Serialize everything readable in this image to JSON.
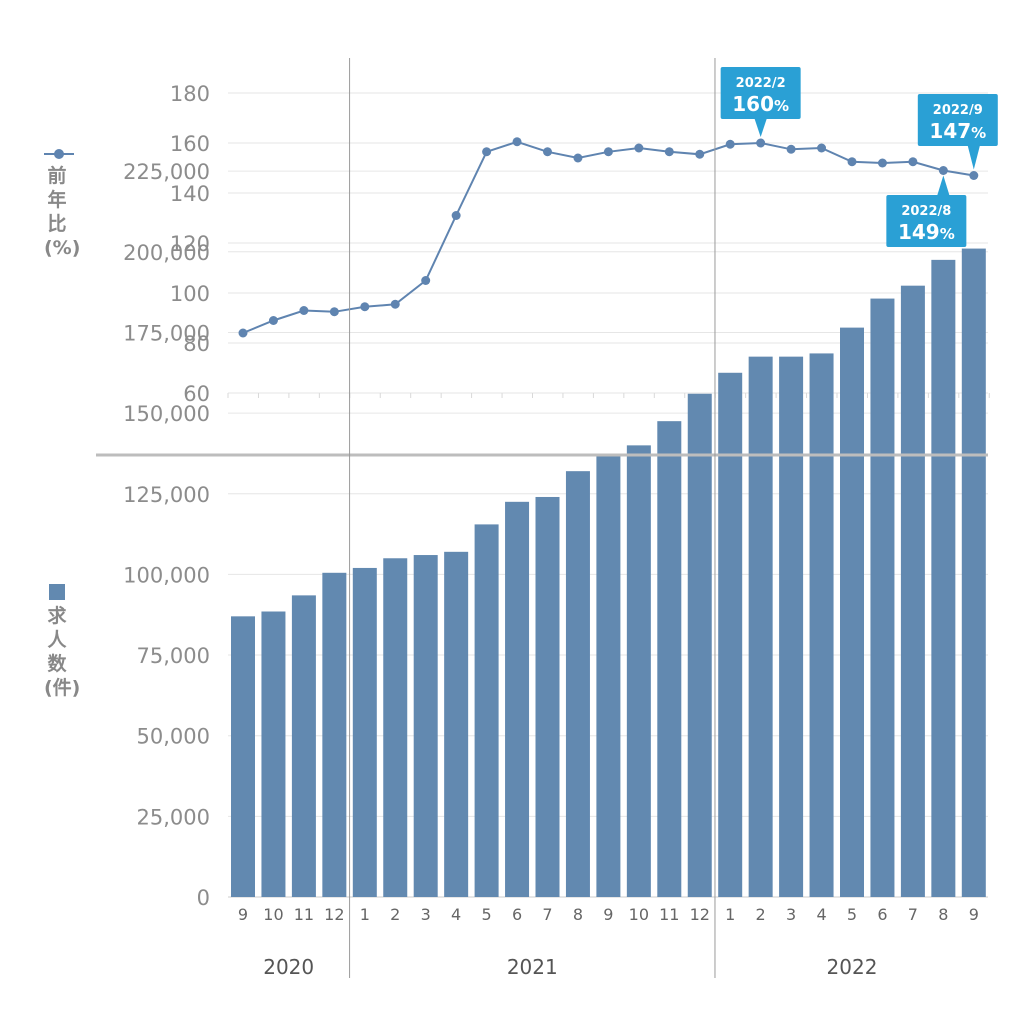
{
  "chart_data": [
    {
      "type": "line",
      "ylabel": "前年比(%)",
      "ylim": [
        60,
        190
      ],
      "yticks": [
        60,
        80,
        100,
        120,
        140,
        160,
        180
      ],
      "grid": true,
      "series": [
        {
          "color": "#5f84b0",
          "values": [
            84,
            89,
            93,
            92.5,
            94.5,
            95.5,
            105,
            131,
            156.5,
            160.5,
            156.5,
            154,
            156.5,
            158,
            156.5,
            155.5,
            159.5,
            160,
            157.5,
            158,
            152.5,
            152,
            152.5,
            149,
            147
          ]
        }
      ],
      "annotations": [
        {
          "index": 17,
          "label": "2022/2",
          "value_text": "160",
          "unit": "%"
        },
        {
          "index": 23,
          "label": "2022/8",
          "value_text": "149",
          "unit": "%"
        },
        {
          "index": 24,
          "label": "2022/9",
          "value_text": "147",
          "unit": "%"
        }
      ],
      "annotation_color": "#2aa0d5"
    },
    {
      "type": "bar",
      "ylabel": "求人数(件)",
      "ylim": [
        0,
        225000
      ],
      "yticks": [
        "0",
        "25,000",
        "50,000",
        "75,000",
        "100,000",
        "125,000",
        "150,000",
        "175,000",
        "200,000",
        "225,000"
      ],
      "grid": true,
      "series": [
        {
          "color": "#6289b0",
          "values": [
            87000,
            88500,
            93500,
            100500,
            102000,
            105000,
            106000,
            107000,
            115500,
            122500,
            124000,
            132000,
            137000,
            140000,
            147500,
            156000,
            162500,
            167500,
            167500,
            168500,
            176500,
            185500,
            189500,
            197500,
            201000
          ]
        }
      ]
    }
  ],
  "x_months": [
    "9",
    "10",
    "11",
    "12",
    "1",
    "2",
    "3",
    "4",
    "5",
    "6",
    "7",
    "8",
    "9",
    "10",
    "11",
    "12",
    "1",
    "2",
    "3",
    "4",
    "5",
    "6",
    "7",
    "8",
    "9"
  ],
  "x_years": [
    {
      "label": "2020",
      "start": 0,
      "end": 3
    },
    {
      "label": "2021",
      "start": 4,
      "end": 15
    },
    {
      "label": "2022",
      "start": 16,
      "end": 24
    }
  ],
  "colors": {
    "axis_text": "#8c8c8c",
    "grid": "#e6e6e6",
    "divider": "#bdbdbd",
    "year_line": "#9a9a9a"
  }
}
